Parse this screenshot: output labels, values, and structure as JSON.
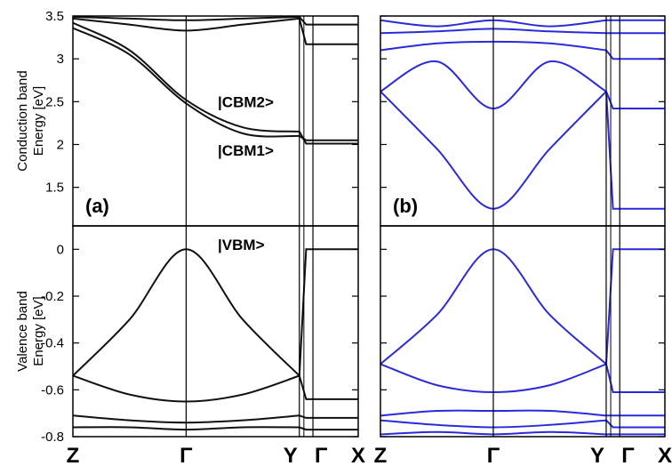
{
  "chart_data": {
    "type": "line",
    "x_ticks": [
      "Z",
      "Γ",
      "Y",
      "Γ",
      "X"
    ],
    "panels": [
      {
        "label": "(a)",
        "color": "#111111",
        "conduction": {
          "ylabel_line1": "Conduction band",
          "ylabel_line2": "Energy [eV]",
          "yticks": [
            "1.5",
            "2",
            "2.5",
            "3",
            "3.5"
          ],
          "ylim": [
            1.05,
            3.5
          ],
          "annotations": [
            {
              "text": "|CBM2>",
              "x": 0.12,
              "y": 2.5
            },
            {
              "text": "|CBM1>",
              "x": 0.12,
              "y": 1.93
            }
          ],
          "series": [
            {
              "x": [
                0,
                0.25,
                0.5,
                0.75,
                1.0,
                1.16,
                1.26
              ],
              "y": [
                3.36,
                3.05,
                2.48,
                2.13,
                2.1,
                2.05,
                2.05
              ]
            },
            {
              "x": [
                0,
                0.25,
                0.5,
                0.75,
                1.0,
                1.16,
                1.26
              ],
              "y": [
                3.42,
                3.1,
                2.52,
                2.2,
                2.15,
                2.01,
                2.01
              ]
            },
            {
              "x": [
                0,
                0.25,
                0.5,
                0.75,
                1.0,
                1.16,
                1.26
              ],
              "y": [
                3.47,
                3.4,
                3.33,
                3.4,
                3.47,
                3.17,
                3.17
              ]
            },
            {
              "x": [
                0,
                0.25,
                0.5,
                0.75,
                1.0,
                1.16,
                1.26
              ],
              "y": [
                3.49,
                3.47,
                3.45,
                3.47,
                3.49,
                3.4,
                3.4
              ]
            }
          ]
        },
        "valence": {
          "ylabel_line1": "Valence band",
          "ylabel_line2": "Energy [eV]",
          "yticks": [
            "0",
            "-0.2",
            "-0.4",
            "-0.6",
            "-0.8"
          ],
          "ylim": [
            -0.8,
            0.1
          ],
          "annotations": [
            {
              "text": "|VBM>",
              "x": 0.55,
              "y": 0.02
            }
          ],
          "series": [
            {
              "x": [
                0,
                0.25,
                0.5,
                0.75,
                1.0,
                1.16,
                1.26
              ],
              "y": [
                -0.54,
                -0.3,
                0.0,
                -0.3,
                -0.54,
                0.0,
                0.0
              ]
            },
            {
              "x": [
                0,
                0.25,
                0.5,
                0.75,
                1.0,
                1.16,
                1.26
              ],
              "y": [
                -0.54,
                -0.62,
                -0.65,
                -0.62,
                -0.54,
                -0.64,
                -0.64
              ]
            },
            {
              "x": [
                0,
                0.25,
                0.5,
                0.75,
                1.0,
                1.16,
                1.26
              ],
              "y": [
                -0.71,
                -0.73,
                -0.74,
                -0.73,
                -0.71,
                -0.72,
                -0.72
              ]
            },
            {
              "x": [
                0,
                0.25,
                0.5,
                0.75,
                1.0,
                1.16,
                1.26
              ],
              "y": [
                -0.76,
                -0.76,
                -0.77,
                -0.76,
                -0.76,
                -0.77,
                -0.77
              ]
            }
          ]
        }
      },
      {
        "label": "(b)",
        "color": "#2a2adc",
        "conduction": {
          "yticks": [
            "1.5",
            "2",
            "2.5",
            "3",
            "3.5"
          ],
          "ylim": [
            1.05,
            3.5
          ],
          "annotations": [],
          "series": [
            {
              "x": [
                0,
                0.25,
                0.5,
                0.75,
                1.0,
                1.16,
                1.26
              ],
              "y": [
                2.62,
                1.95,
                1.25,
                1.95,
                2.62,
                1.25,
                1.25
              ]
            },
            {
              "x": [
                0,
                0.25,
                0.5,
                0.75,
                1.0,
                1.16,
                1.26
              ],
              "y": [
                2.62,
                2.97,
                2.42,
                2.97,
                2.62,
                2.42,
                2.42
              ]
            },
            {
              "x": [
                0,
                0.25,
                0.5,
                0.75,
                1.0,
                1.16,
                1.26
              ],
              "y": [
                3.1,
                3.18,
                3.2,
                3.18,
                3.1,
                3.0,
                3.0
              ]
            },
            {
              "x": [
                0,
                0.25,
                0.5,
                0.75,
                1.0,
                1.16,
                1.26
              ],
              "y": [
                3.3,
                3.32,
                3.35,
                3.32,
                3.3,
                3.3,
                3.3
              ]
            },
            {
              "x": [
                0,
                0.25,
                0.5,
                0.75,
                1.0,
                1.16,
                1.26
              ],
              "y": [
                3.45,
                3.38,
                3.45,
                3.38,
                3.45,
                3.45,
                3.45
              ]
            }
          ]
        },
        "valence": {
          "yticks": [
            "0",
            "-0.2",
            "-0.4",
            "-0.6",
            "-0.8"
          ],
          "ylim": [
            -0.8,
            0.1
          ],
          "annotations": [],
          "series": [
            {
              "x": [
                0,
                0.25,
                0.5,
                0.75,
                1.0,
                1.16,
                1.26
              ],
              "y": [
                -0.49,
                -0.28,
                0.0,
                -0.28,
                -0.49,
                0.0,
                0.0
              ]
            },
            {
              "x": [
                0,
                0.25,
                0.5,
                0.75,
                1.0,
                1.16,
                1.26
              ],
              "y": [
                -0.49,
                -0.58,
                -0.61,
                -0.58,
                -0.49,
                -0.61,
                -0.61
              ]
            },
            {
              "x": [
                0,
                0.25,
                0.5,
                0.75,
                1.0,
                1.16,
                1.26
              ],
              "y": [
                -0.71,
                -0.69,
                -0.69,
                -0.69,
                -0.71,
                -0.71,
                -0.71
              ]
            },
            {
              "x": [
                0,
                0.25,
                0.5,
                0.75,
                1.0,
                1.16,
                1.26
              ],
              "y": [
                -0.73,
                -0.75,
                -0.76,
                -0.75,
                -0.73,
                -0.76,
                -0.76
              ]
            },
            {
              "x": [
                0,
                0.25,
                0.5,
                0.75,
                1.0,
                1.16,
                1.26
              ],
              "y": [
                -0.79,
                -0.78,
                -0.79,
                -0.78,
                -0.79,
                -0.79,
                -0.79
              ]
            }
          ]
        }
      }
    ]
  }
}
